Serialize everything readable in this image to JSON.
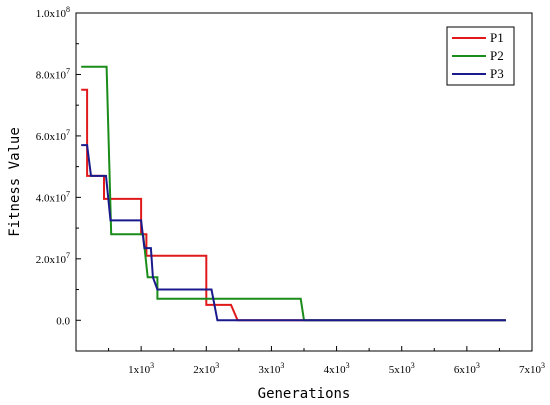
{
  "chart_data": {
    "type": "line",
    "xlabel": "Generations",
    "ylabel": "Fitness Value",
    "xlim": [
      0,
      7000
    ],
    "ylim": [
      -10000000,
      100000000
    ],
    "x_ticks": [
      {
        "value": 1000,
        "base": "1x10",
        "exp": "3"
      },
      {
        "value": 2000,
        "base": "2x10",
        "exp": "3"
      },
      {
        "value": 3000,
        "base": "3x10",
        "exp": "3"
      },
      {
        "value": 4000,
        "base": "4x10",
        "exp": "3"
      },
      {
        "value": 5000,
        "base": "5x10",
        "exp": "3"
      },
      {
        "value": 6000,
        "base": "6x10",
        "exp": "3"
      },
      {
        "value": 7000,
        "base": "7x10",
        "exp": "3"
      }
    ],
    "y_ticks": [
      {
        "value": 0,
        "base": "0.0",
        "exp": ""
      },
      {
        "value": 20000000,
        "base": "2.0x10",
        "exp": "7"
      },
      {
        "value": 40000000,
        "base": "4.0x10",
        "exp": "7"
      },
      {
        "value": 60000000,
        "base": "6.0x10",
        "exp": "7"
      },
      {
        "value": 80000000,
        "base": "8.0x10",
        "exp": "7"
      },
      {
        "value": 100000000,
        "base": "1.0x10",
        "exp": "8"
      }
    ],
    "legend_position": "top-right",
    "grid": false,
    "series": [
      {
        "name": "P1",
        "color": "#e0191b",
        "points": [
          [
            80,
            75000000
          ],
          [
            170,
            75000000
          ],
          [
            170,
            47000000
          ],
          [
            430,
            47000000
          ],
          [
            430,
            39500000
          ],
          [
            1000,
            39500000
          ],
          [
            1000,
            28000000
          ],
          [
            1080,
            28000000
          ],
          [
            1080,
            21000000
          ],
          [
            2000,
            21000000
          ],
          [
            2000,
            5000000
          ],
          [
            2380,
            5000000
          ],
          [
            2380,
            5000000
          ],
          [
            2480,
            0
          ],
          [
            6600,
            0
          ]
        ]
      },
      {
        "name": "P2",
        "color": "#1a8c1a",
        "points": [
          [
            80,
            82500000
          ],
          [
            470,
            82500000
          ],
          [
            470,
            82500000
          ],
          [
            540,
            28000000
          ],
          [
            1030,
            28000000
          ],
          [
            1030,
            28000000
          ],
          [
            1100,
            14000000
          ],
          [
            1250,
            14000000
          ],
          [
            1250,
            7000000
          ],
          [
            3450,
            7000000
          ],
          [
            3500,
            0
          ],
          [
            6600,
            0
          ]
        ]
      },
      {
        "name": "P3",
        "color": "#1a1a8c",
        "points": [
          [
            80,
            57000000
          ],
          [
            170,
            57000000
          ],
          [
            230,
            47000000
          ],
          [
            460,
            47000000
          ],
          [
            530,
            32500000
          ],
          [
            1000,
            32500000
          ],
          [
            1050,
            23500000
          ],
          [
            1150,
            23500000
          ],
          [
            1180,
            14000000
          ],
          [
            1250,
            10000000
          ],
          [
            2080,
            10000000
          ],
          [
            2170,
            0
          ],
          [
            6600,
            0
          ]
        ]
      }
    ]
  }
}
